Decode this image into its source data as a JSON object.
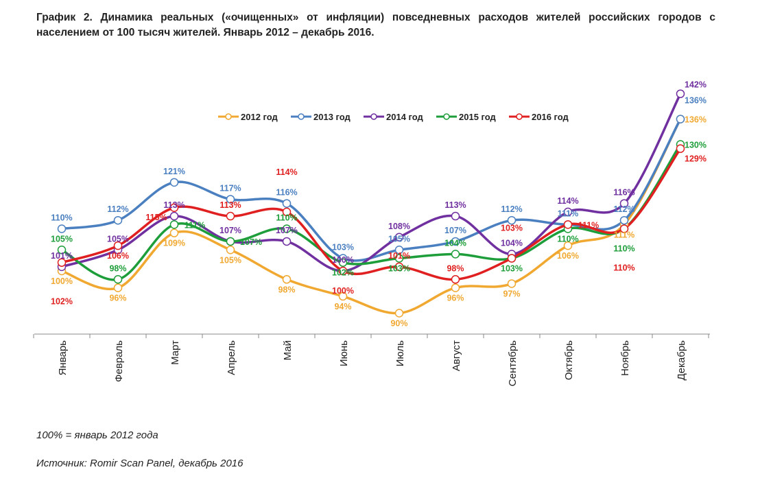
{
  "title": "График 2. Динамика реальных («очищенных» от инфляции) повседневных расходов жителей российских городов с населением от 100 тысяч жителей. Январь 2012 – декабрь 2016.",
  "notes": {
    "base": "100% = январь 2012 года",
    "source": "Источник: Romir Scan Panel, декабрь 2016"
  },
  "chart_data": {
    "type": "line",
    "title": "",
    "xlabel": "",
    "ylabel": "",
    "ylim": [
      85,
      145
    ],
    "grid": false,
    "legend": "top",
    "categories": [
      "Январь",
      "Февраль",
      "Март",
      "Апрель",
      "Май",
      "Июнь",
      "Июль",
      "Август",
      "Сентябрь",
      "Октябрь",
      "Ноябрь",
      "Декабрь"
    ],
    "series": [
      {
        "name": "2012 год",
        "color": "#f0a830",
        "values": [
          100,
          96,
          109,
          105,
          98,
          94,
          90,
          96,
          97,
          106,
          111,
          136
        ]
      },
      {
        "name": "2013 год",
        "color": "#4a7fc0",
        "values": [
          110,
          112,
          121,
          117,
          116,
          103,
          105,
          107,
          112,
          111,
          112,
          136
        ]
      },
      {
        "name": "2014 год",
        "color": "#7030a0",
        "values": [
          101,
          105,
          113,
          107,
          107,
          100,
          108,
          113,
          104,
          114,
          116,
          142
        ]
      },
      {
        "name": "2015 год",
        "color": "#1e9e3a",
        "values": [
          105,
          98,
          111,
          107,
          110,
          102,
          103,
          104,
          103,
          110,
          110,
          130
        ]
      },
      {
        "name": "2016 год",
        "color": "#e02020",
        "values": [
          102,
          106,
          115,
          113,
          114,
          100,
          101,
          98,
          103,
          111,
          110,
          129
        ]
      }
    ]
  }
}
